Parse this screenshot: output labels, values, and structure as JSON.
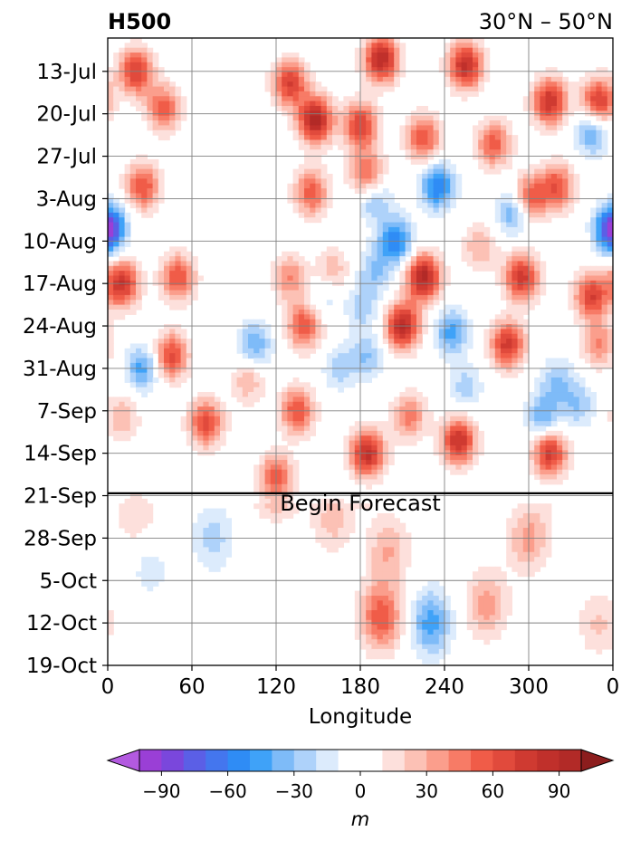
{
  "chart_data": {
    "type": "heatmap",
    "title": "H500",
    "subtitle": "30°N – 50°N",
    "xlabel": "Longitude",
    "ylabel": "",
    "x_ticks": [
      {
        "lon": 0,
        "label": "0"
      },
      {
        "lon": 60,
        "label": "60"
      },
      {
        "lon": 120,
        "label": "120"
      },
      {
        "lon": 180,
        "label": "180"
      },
      {
        "lon": 240,
        "label": "240"
      },
      {
        "lon": 300,
        "label": "300"
      },
      {
        "lon": 360,
        "label": "0"
      }
    ],
    "y_ticks": [
      {
        "day": 3,
        "label": "13-Jul"
      },
      {
        "day": 10,
        "label": "20-Jul"
      },
      {
        "day": 17,
        "label": "27-Jul"
      },
      {
        "day": 24,
        "label": "3-Aug"
      },
      {
        "day": 31,
        "label": "10-Aug"
      },
      {
        "day": 38,
        "label": "17-Aug"
      },
      {
        "day": 45,
        "label": "24-Aug"
      },
      {
        "day": 52,
        "label": "31-Aug"
      },
      {
        "day": 59,
        "label": "7-Sep"
      },
      {
        "day": 66,
        "label": "14-Sep"
      },
      {
        "day": 73,
        "label": "21-Sep"
      },
      {
        "day": 80,
        "label": "28-Sep"
      },
      {
        "day": 87,
        "label": "5-Oct"
      },
      {
        "day": 94,
        "label": "12-Oct"
      },
      {
        "day": 101,
        "label": "19-Oct"
      }
    ],
    "day_range": [
      -2.5,
      101
    ],
    "forecast_start_day": 72.6,
    "annotation": "Begin Forecast",
    "colorbar": {
      "label": "m",
      "ticks": [
        -90,
        -60,
        -30,
        0,
        30,
        60,
        90
      ],
      "levels": [
        -100,
        -90,
        -80,
        -70,
        -60,
        -50,
        -40,
        -30,
        -20,
        -10,
        10,
        20,
        30,
        40,
        50,
        60,
        70,
        80,
        90,
        100
      ],
      "colors": [
        "#9a3fd6",
        "#7a47dc",
        "#5b5fe6",
        "#4476ee",
        "#2f8cf5",
        "#3fa2f8",
        "#7ebbf8",
        "#aed2fa",
        "#dcebfc",
        "#ffffff",
        "#fde0dc",
        "#fcc1b5",
        "#fb9e8c",
        "#f77b66",
        "#f05c48",
        "#e14a3c",
        "#cf3a31",
        "#c0302b",
        "#b22a27"
      ],
      "under_color": "#b35ae0",
      "over_color": "#8c1d1d"
    },
    "anomaly_centers": [
      {
        "lon": 148,
        "day": 11,
        "value": 95
      },
      {
        "lon": 195,
        "day": 1,
        "value": 90
      },
      {
        "lon": 255,
        "day": 2,
        "value": 85
      },
      {
        "lon": 315,
        "day": 8,
        "value": 80
      },
      {
        "lon": 350,
        "day": 8,
        "value": 75
      },
      {
        "lon": 20,
        "day": 3,
        "value": 70
      },
      {
        "lon": 40,
        "day": 9,
        "value": 55
      },
      {
        "lon": 130,
        "day": 5,
        "value": 70
      },
      {
        "lon": 180,
        "day": 12,
        "value": 70
      },
      {
        "lon": 225,
        "day": 14,
        "value": 60
      },
      {
        "lon": 275,
        "day": 15,
        "value": 55
      },
      {
        "lon": 25,
        "day": 22,
        "value": 60
      },
      {
        "lon": 145,
        "day": 23,
        "value": 55
      },
      {
        "lon": 185,
        "day": 20,
        "value": 55
      },
      {
        "lon": 300,
        "day": 24,
        "value": 65
      },
      {
        "lon": 320,
        "day": 22,
        "value": 60
      },
      {
        "lon": 225,
        "day": 37,
        "value": 95
      },
      {
        "lon": 210,
        "day": 45,
        "value": 90
      },
      {
        "lon": 295,
        "day": 37,
        "value": 75
      },
      {
        "lon": 285,
        "day": 48,
        "value": 75
      },
      {
        "lon": 10,
        "day": 38,
        "value": 80
      },
      {
        "lon": 50,
        "day": 37,
        "value": 60
      },
      {
        "lon": 45,
        "day": 50,
        "value": 65
      },
      {
        "lon": 140,
        "day": 45,
        "value": 60
      },
      {
        "lon": 130,
        "day": 37,
        "value": 40
      },
      {
        "lon": 345,
        "day": 40,
        "value": 70
      },
      {
        "lon": 350,
        "day": 48,
        "value": 40
      },
      {
        "lon": 185,
        "day": 66,
        "value": 85
      },
      {
        "lon": 250,
        "day": 64,
        "value": 80
      },
      {
        "lon": 215,
        "day": 60,
        "value": 45
      },
      {
        "lon": 315,
        "day": 66,
        "value": 75
      },
      {
        "lon": 70,
        "day": 61,
        "value": 65
      },
      {
        "lon": 135,
        "day": 59,
        "value": 60
      },
      {
        "lon": 120,
        "day": 70,
        "value": 60
      },
      {
        "lon": 10,
        "day": 60,
        "value": 30
      },
      {
        "lon": 100,
        "day": 54,
        "value": 30
      },
      {
        "lon": 160,
        "day": 36,
        "value": 30
      },
      {
        "lon": 265,
        "day": 32,
        "value": 30
      },
      {
        "lon": 235,
        "day": 22,
        "value": -60
      },
      {
        "lon": 290,
        "day": 26,
        "value": -50
      },
      {
        "lon": 345,
        "day": 13,
        "value": -45
      },
      {
        "lon": 0,
        "day": 29,
        "value": -50
      },
      {
        "lon": 360,
        "day": 29,
        "value": -50
      },
      {
        "lon": 205,
        "day": 31,
        "value": -60
      },
      {
        "lon": 190,
        "day": 36,
        "value": -30
      },
      {
        "lon": 245,
        "day": 46,
        "value": -45
      },
      {
        "lon": 185,
        "day": 50,
        "value": -30
      },
      {
        "lon": 182,
        "day": 42,
        "value": -25
      },
      {
        "lon": 165,
        "day": 52,
        "value": -25
      },
      {
        "lon": 310,
        "day": 60,
        "value": -40
      },
      {
        "lon": 255,
        "day": 55,
        "value": -25
      },
      {
        "lon": 105,
        "day": 48,
        "value": -40
      },
      {
        "lon": 25,
        "day": 52,
        "value": -45
      },
      {
        "lon": 190,
        "day": 24,
        "value": -35
      },
      {
        "lon": 320,
        "day": 54,
        "value": -30
      },
      {
        "lon": 335,
        "day": 58,
        "value": -30
      },
      {
        "lon": 155,
        "day": 40,
        "value": -20
      },
      {
        "lon": 195,
        "day": 93,
        "value": 58
      },
      {
        "lon": 200,
        "day": 82,
        "value": 30
      },
      {
        "lon": 270,
        "day": 91,
        "value": 35
      },
      {
        "lon": 300,
        "day": 80,
        "value": 35
      },
      {
        "lon": 160,
        "day": 77,
        "value": 25
      },
      {
        "lon": 350,
        "day": 94,
        "value": 22
      },
      {
        "lon": 20,
        "day": 76,
        "value": 20
      },
      {
        "lon": 230,
        "day": 94,
        "value": -45
      },
      {
        "lon": 75,
        "day": 80,
        "value": -25
      },
      {
        "lon": 30,
        "day": 85,
        "value": -15
      }
    ]
  }
}
